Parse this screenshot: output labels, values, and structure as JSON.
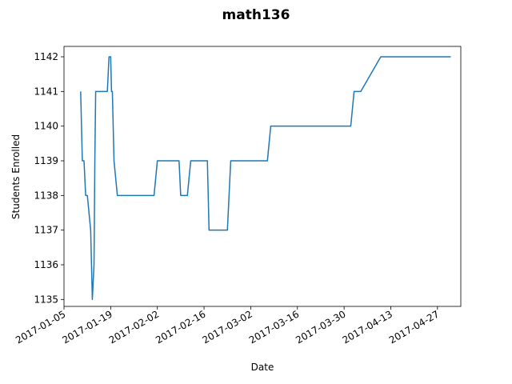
{
  "chart_data": {
    "type": "line",
    "title": "math136",
    "xlabel": "Date",
    "ylabel": "Students Enrolled",
    "x_axis": "date",
    "xlim": [
      "2017-01-05",
      "2017-05-04"
    ],
    "ylim": [
      1134.8,
      1142.3
    ],
    "grid": false,
    "legend": "none",
    "line_color": "#1f77b4",
    "x_ticks": [
      "2017-01-05",
      "2017-01-19",
      "2017-02-02",
      "2017-02-16",
      "2017-03-02",
      "2017-03-16",
      "2017-03-30",
      "2017-04-13",
      "2017-04-27"
    ],
    "y_ticks": [
      1135,
      1136,
      1137,
      1138,
      1139,
      1140,
      1141,
      1142
    ],
    "series": [
      {
        "x": [
          "2017-01-10",
          "2017-01-10 12:00",
          "2017-01-11",
          "2017-01-11 12:00",
          "2017-01-12",
          "2017-01-13",
          "2017-01-13 12:00",
          "2017-01-14",
          "2017-01-14 06:00",
          "2017-01-14 12:00",
          "2017-01-15",
          "2017-01-16",
          "2017-01-17",
          "2017-01-18",
          "2017-01-18 12:00",
          "2017-01-19",
          "2017-01-19 06:00",
          "2017-01-19 12:00",
          "2017-01-20",
          "2017-01-21",
          "2017-01-25",
          "2017-01-30",
          "2017-01-31",
          "2017-02-01",
          "2017-02-02",
          "2017-02-08",
          "2017-02-08 12:00",
          "2017-02-09",
          "2017-02-10",
          "2017-02-11",
          "2017-02-12",
          "2017-02-17",
          "2017-02-17 12:00",
          "2017-02-21",
          "2017-02-23",
          "2017-02-24",
          "2017-03-06",
          "2017-03-07",
          "2017-03-08",
          "2017-03-15",
          "2017-03-28",
          "2017-03-31",
          "2017-04-01",
          "2017-04-02",
          "2017-04-03",
          "2017-04-04",
          "2017-04-10",
          "2017-04-20",
          "2017-05-01"
        ],
        "y": [
          1141,
          1139,
          1139,
          1138,
          1138,
          1137,
          1135,
          1136,
          1139,
          1141,
          1141,
          1141,
          1141,
          1141,
          1142,
          1142,
          1141,
          1141,
          1139,
          1138,
          1138,
          1138,
          1138,
          1138,
          1139,
          1139,
          1139,
          1138,
          1138,
          1138,
          1139,
          1139,
          1137,
          1137,
          1137,
          1139,
          1139,
          1139,
          1140,
          1140,
          1140,
          1140,
          1140,
          1141,
          1141,
          1141,
          1142,
          1142,
          1142
        ]
      }
    ]
  }
}
